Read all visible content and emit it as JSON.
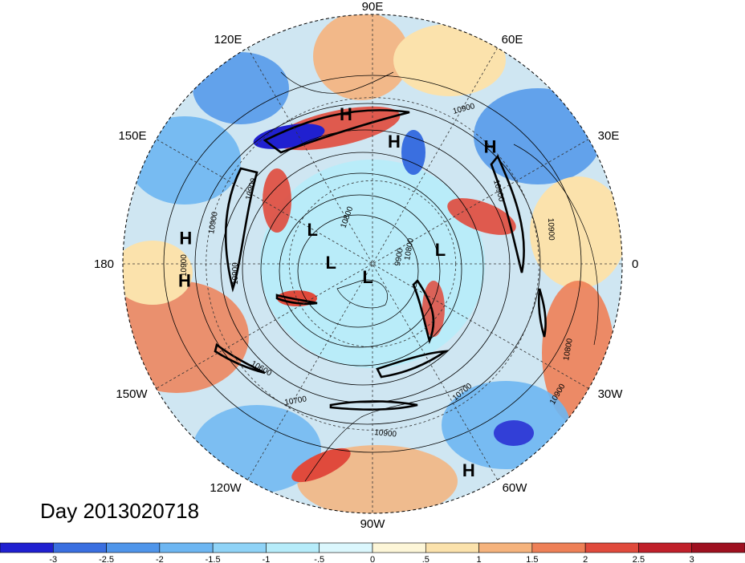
{
  "title": "Day 2013020718",
  "longitude_labels": {
    "n90e": "90E",
    "n60e": "60E",
    "n30e": "30E",
    "n0": "0",
    "n30w": "30W",
    "n60w": "60W",
    "n90w": "90W",
    "n120w": "120W",
    "n150w": "150W",
    "n180": "180",
    "n150e": "150E",
    "n120e": "120E"
  },
  "pressure_centers": [
    {
      "type": "H",
      "lon": 100,
      "lat": 35
    },
    {
      "type": "H",
      "lon": 80,
      "lat": 45
    },
    {
      "type": "H",
      "lon": 45,
      "lat": 30
    },
    {
      "type": "H",
      "lon": -175,
      "lat": 22
    },
    {
      "type": "H",
      "lon": 172,
      "lat": 22
    },
    {
      "type": "H",
      "lon": -65,
      "lat": 8
    },
    {
      "type": "L",
      "lon": 150,
      "lat": 65
    },
    {
      "type": "L",
      "lon": 178,
      "lat": 75
    },
    {
      "type": "L",
      "lon": 12,
      "lat": 65
    },
    {
      "type": "L",
      "lon": -110,
      "lat": 85
    }
  ],
  "contour_labels": [
    "10900",
    "10900",
    "10900",
    "10900",
    "10900",
    "10900",
    "10900",
    "10800",
    "10800",
    "10800",
    "10700",
    "10700",
    "10600",
    "10900",
    "10900",
    "9900"
  ],
  "colorbar": {
    "ticks": [
      "-3",
      "-2.5",
      "-2",
      "-1.5",
      "-1",
      "-.5",
      "0",
      ".5",
      "1",
      "1.5",
      "2",
      "2.5",
      "3"
    ],
    "colors": [
      "#2020d0",
      "#3a6fe0",
      "#4f95ea",
      "#6db6f2",
      "#8fd3f7",
      "#b6ecfa",
      "#dbf7fd",
      "#fdf6d8",
      "#fbe2ac",
      "#f5b37d",
      "#ee8057",
      "#e04a3c",
      "#c0202a",
      "#9e1020"
    ]
  }
}
